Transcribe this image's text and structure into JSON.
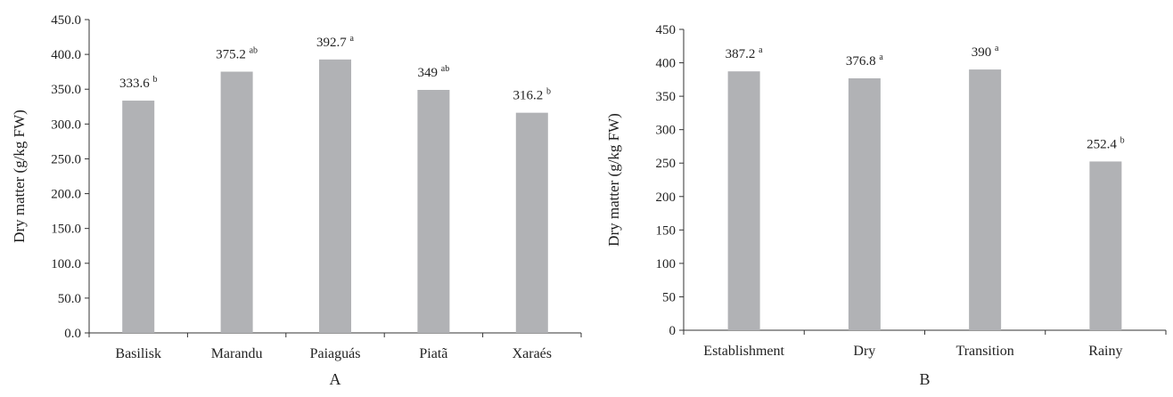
{
  "chart_data": [
    {
      "type": "bar",
      "panel_label": "A",
      "ylabel": "Dry matter (g/kg FW)",
      "ylim": [
        0,
        450
      ],
      "ytick_step": 50,
      "ytick_decimals": 1,
      "categories": [
        "Basilisk",
        "Marandu",
        "Paiaguás",
        "Piatã",
        "Xaraés"
      ],
      "values": [
        333.6,
        375.2,
        392.7,
        349,
        316.2
      ],
      "value_labels": [
        "333.6",
        "375.2",
        "392.7",
        "349",
        "316.2"
      ],
      "letters": [
        "b",
        "ab",
        "a",
        "ab",
        "b"
      ],
      "bar_color": "#b1b2b5",
      "grid": false
    },
    {
      "type": "bar",
      "panel_label": "B",
      "ylabel": "Dry matter (g/kg FW)",
      "ylim": [
        0,
        450
      ],
      "ytick_step": 50,
      "ytick_decimals": 0,
      "categories": [
        "Establishment",
        "Dry",
        "Transition",
        "Rainy"
      ],
      "values": [
        387.2,
        376.8,
        390,
        252.4
      ],
      "value_labels": [
        "387.2",
        "376.8",
        "390",
        "252.4"
      ],
      "letters": [
        "a",
        "a",
        "a",
        "b"
      ],
      "bar_color": "#b1b2b5",
      "grid": false
    }
  ]
}
